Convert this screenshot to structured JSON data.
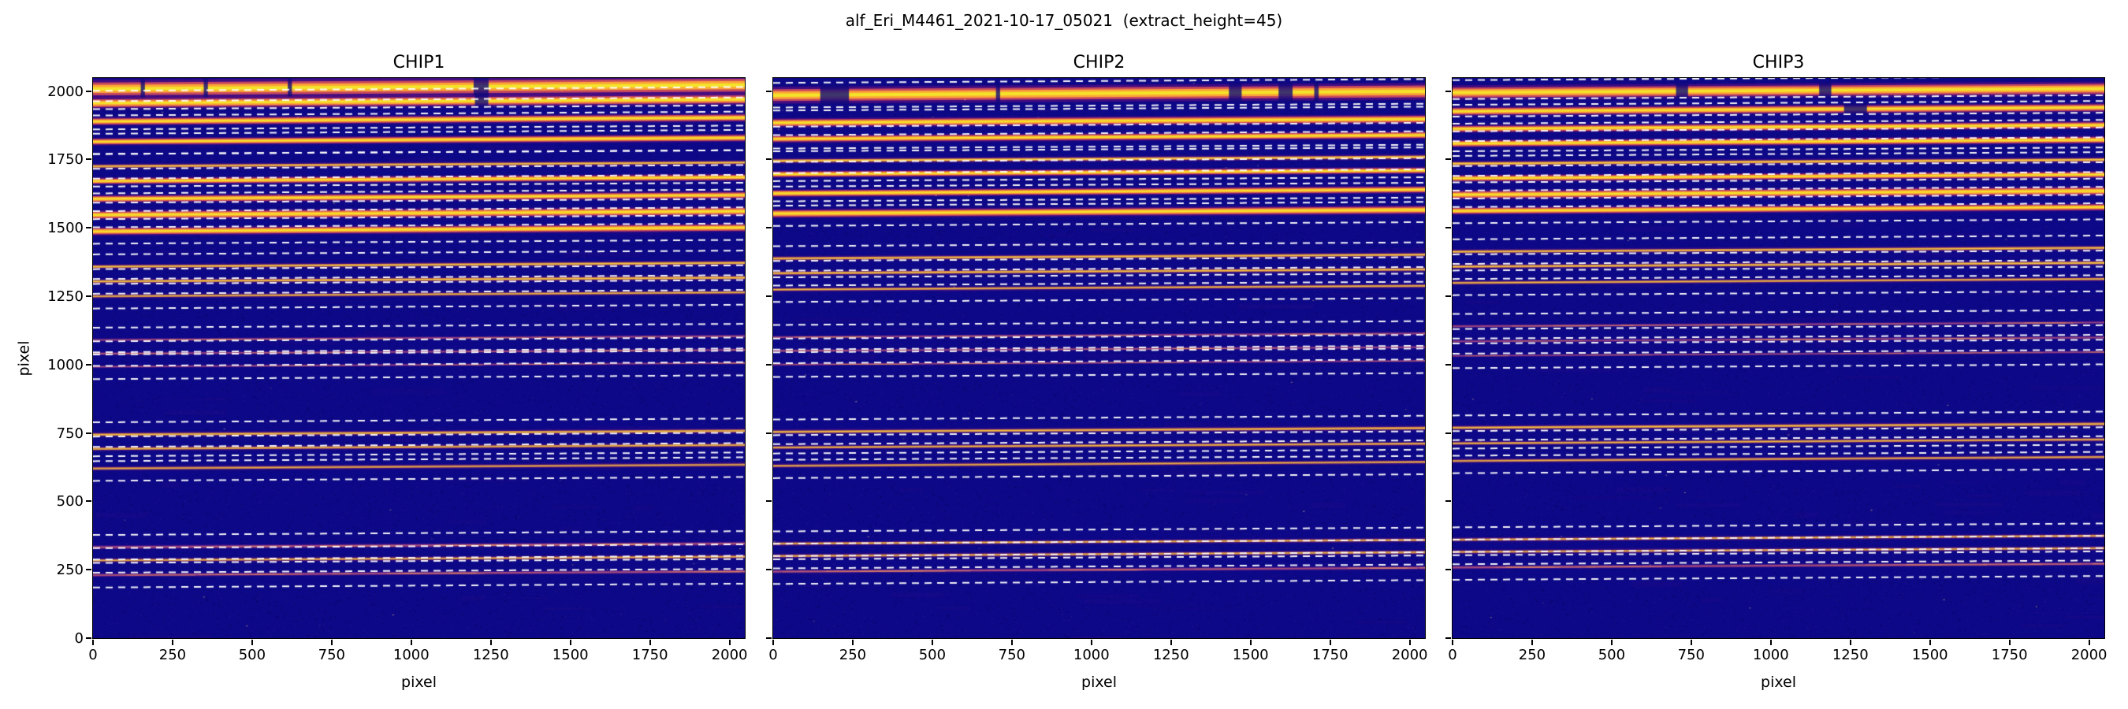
{
  "figure": {
    "suptitle": "alf_Eri_M4461_2021-10-17_05021  (extract_height=45)"
  },
  "axes": {
    "xlabel": "pixel",
    "ylabel": "pixel",
    "xticks": [
      0,
      250,
      500,
      750,
      1000,
      1250,
      1500,
      1750,
      2000
    ],
    "yticks": [
      0,
      250,
      500,
      750,
      1000,
      1250,
      1500,
      1750,
      2000
    ],
    "xmax": 2048,
    "ymax": 2048
  },
  "chart_data": {
    "type": "heatmap",
    "description": "Three echelle spectrograph detector frames (plasma colormap). Bright horizontal stripes are spectral orders; white dashed lines mark extraction windows at order_center +/- extract_height.",
    "extract_height": 45,
    "tilt": 14,
    "xmax": 2048,
    "ymax": 2048,
    "colormap": "plasma",
    "colors": {
      "background": "#0d0887",
      "order_core": "#f4e32a",
      "order_mid": "#fca636",
      "order_edge": "#d6505a",
      "order_glow": "#a0147820",
      "faint_order": "#b12a90",
      "dash": "#ffffff",
      "text": "#000000"
    },
    "panels": [
      {
        "title": "CHIP1",
        "seed": 101,
        "orders": [
          {
            "y": 2008,
            "i": 1.0,
            "t": 26,
            "breaks": [
              [
                150,
                163
              ],
              [
                348,
                361
              ],
              [
                612,
                625
              ],
              [
                1196,
                1243
              ]
            ]
          },
          {
            "y": 1956,
            "i": 1.0,
            "t": 16,
            "breaks": [
              [
                1200,
                1242
              ]
            ]
          },
          {
            "y": 1889,
            "i": 0.9,
            "t": 12
          },
          {
            "y": 1815,
            "i": 0.85,
            "t": 11
          },
          {
            "y": 1725,
            "i": 0.6,
            "t": 9
          },
          {
            "y": 1671,
            "i": 0.8,
            "t": 10
          },
          {
            "y": 1606,
            "i": 0.85,
            "t": 11
          },
          {
            "y": 1547,
            "i": 0.95,
            "t": 13
          },
          {
            "y": 1487,
            "i": 0.9,
            "t": 12
          },
          {
            "y": 1358,
            "i": 0.6,
            "t": 9
          },
          {
            "y": 1304,
            "i": 0.6,
            "t": 9
          },
          {
            "y": 1250,
            "i": 0.45,
            "t": 8
          },
          {
            "y": 1090,
            "i": 0.22,
            "t": 6
          },
          {
            "y": 1040,
            "i": 0.22,
            "t": 6
          },
          {
            "y": 992,
            "i": 0.18,
            "t": 5
          },
          {
            "y": 744,
            "i": 0.5,
            "t": 9
          },
          {
            "y": 692,
            "i": 0.45,
            "t": 8
          },
          {
            "y": 620,
            "i": 0.35,
            "t": 8
          },
          {
            "y": 332,
            "i": 0.3,
            "t": 8
          },
          {
            "y": 284,
            "i": 0.4,
            "t": 8
          },
          {
            "y": 230,
            "i": 0.3,
            "t": 7
          }
        ]
      },
      {
        "title": "CHIP2",
        "seed": 202,
        "orders": [
          {
            "y": 1985,
            "i": 1.0,
            "t": 24,
            "breaks": [
              [
                148,
                238
              ],
              [
                700,
                713
              ],
              [
                1432,
                1472
              ],
              [
                1588,
                1632
              ],
              [
                1700,
                1714
              ]
            ]
          },
          {
            "y": 1884,
            "i": 0.95,
            "t": 13
          },
          {
            "y": 1825,
            "i": 0.85,
            "t": 11
          },
          {
            "y": 1745,
            "i": 0.7,
            "t": 10
          },
          {
            "y": 1696,
            "i": 0.75,
            "t": 10
          },
          {
            "y": 1626,
            "i": 0.8,
            "t": 11
          },
          {
            "y": 1552,
            "i": 0.95,
            "t": 13
          },
          {
            "y": 1388,
            "i": 0.6,
            "t": 9
          },
          {
            "y": 1334,
            "i": 0.6,
            "t": 9
          },
          {
            "y": 1274,
            "i": 0.5,
            "t": 8
          },
          {
            "y": 1100,
            "i": 0.22,
            "t": 6
          },
          {
            "y": 1050,
            "i": 0.2,
            "t": 6
          },
          {
            "y": 1000,
            "i": 0.18,
            "t": 5
          },
          {
            "y": 754,
            "i": 0.55,
            "t": 9
          },
          {
            "y": 697,
            "i": 0.5,
            "t": 8
          },
          {
            "y": 630,
            "i": 0.4,
            "t": 8
          },
          {
            "y": 345,
            "i": 0.45,
            "t": 8
          },
          {
            "y": 300,
            "i": 0.4,
            "t": 8
          },
          {
            "y": 243,
            "i": 0.3,
            "t": 7
          }
        ]
      },
      {
        "title": "CHIP3",
        "seed": 303,
        "orders": [
          {
            "y": 1995,
            "i": 1.0,
            "t": 20,
            "breaks": [
              [
                702,
                740
              ],
              [
                1152,
                1190
              ]
            ]
          },
          {
            "y": 1926,
            "i": 0.95,
            "t": 13,
            "breaks": [
              [
                1230,
                1302
              ]
            ]
          },
          {
            "y": 1862,
            "i": 0.8,
            "t": 11
          },
          {
            "y": 1808,
            "i": 0.8,
            "t": 11
          },
          {
            "y": 1735,
            "i": 0.7,
            "t": 10
          },
          {
            "y": 1681,
            "i": 0.8,
            "t": 10
          },
          {
            "y": 1621,
            "i": 0.95,
            "t": 13
          },
          {
            "y": 1562,
            "i": 0.85,
            "t": 11
          },
          {
            "y": 1413,
            "i": 0.6,
            "t": 9
          },
          {
            "y": 1358,
            "i": 0.6,
            "t": 9
          },
          {
            "y": 1299,
            "i": 0.5,
            "t": 8
          },
          {
            "y": 1140,
            "i": 0.22,
            "t": 6
          },
          {
            "y": 1085,
            "i": 0.2,
            "t": 6
          },
          {
            "y": 1032,
            "i": 0.18,
            "t": 5
          },
          {
            "y": 769,
            "i": 0.55,
            "t": 9
          },
          {
            "y": 712,
            "i": 0.5,
            "t": 8
          },
          {
            "y": 648,
            "i": 0.4,
            "t": 8
          },
          {
            "y": 360,
            "i": 0.45,
            "t": 8
          },
          {
            "y": 315,
            "i": 0.4,
            "t": 8
          },
          {
            "y": 258,
            "i": 0.3,
            "t": 7
          }
        ]
      }
    ]
  }
}
